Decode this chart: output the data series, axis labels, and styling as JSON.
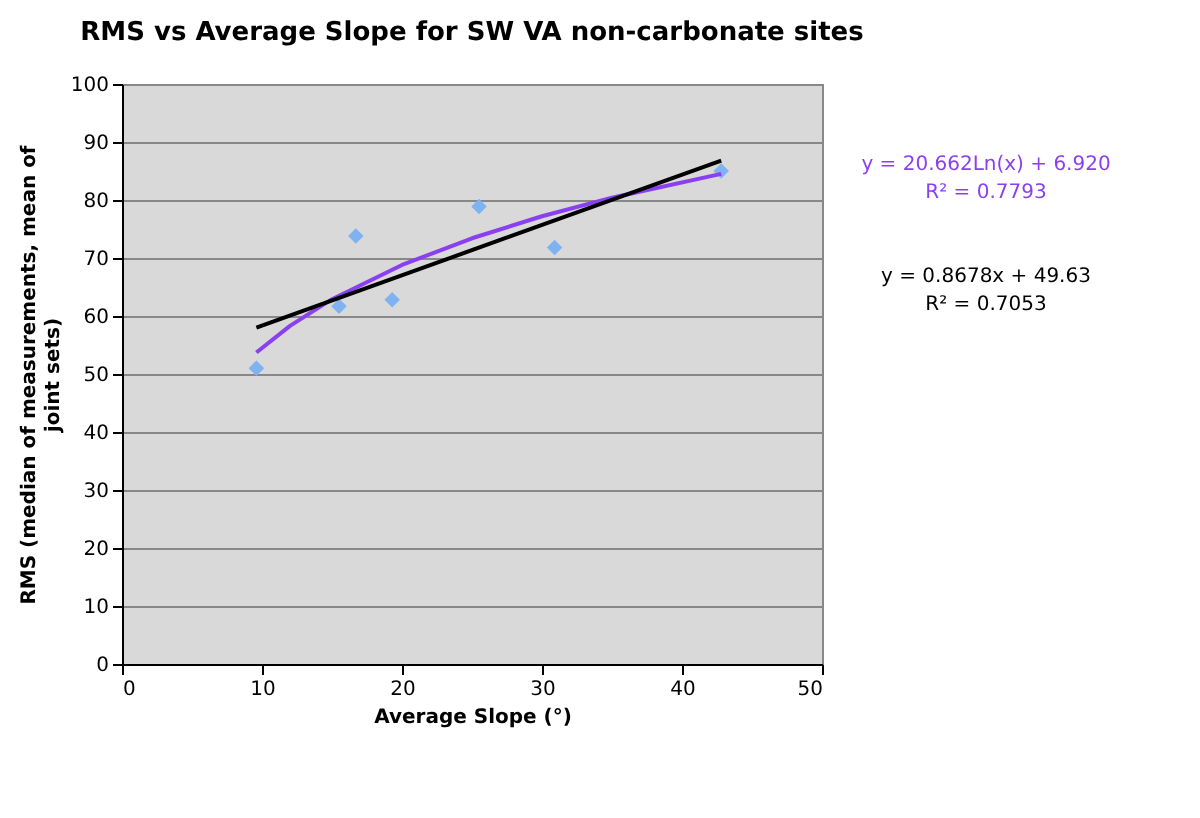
{
  "chart_data": {
    "type": "scatter",
    "title": "RMS vs Average Slope for SW VA non-carbonate sites",
    "xlabel": "Average Slope (°)",
    "ylabel": "RMS (median of measurements, mean of joint sets)",
    "series": [
      {
        "color": "#7fb2f0",
        "marker": "diamond",
        "x": [
          9.6,
          15.5,
          16.7,
          19.3,
          25.5,
          30.9,
          42.8
        ],
        "values": [
          51,
          61.7,
          73.8,
          62.8,
          78.9,
          71.8,
          85
        ]
      },
      {
        "type": "line",
        "color": "#8a3ff0",
        "marker": "none",
        "x": [
          9.6,
          12,
          15,
          20,
          25,
          30,
          35,
          42.8
        ],
        "values": [
          53.7,
          58.3,
          62.9,
          68.8,
          73.4,
          77.2,
          80.4,
          84.5
        ]
      },
      {
        "type": "line",
        "color": "#000000",
        "marker": "none",
        "x": [
          9.6,
          42.8
        ],
        "values": [
          58.0,
          86.8
        ]
      }
    ],
    "annotations": [
      "y = 20.662Ln(x) + 6.920",
      "R² = 0.7793",
      "y = 0.8678x + 49.63",
      "R² = 0.7053"
    ],
    "xlim": [
      0,
      50
    ],
    "xticks": [
      0,
      10,
      20,
      30,
      40,
      50
    ],
    "ylim": [
      0,
      100
    ],
    "yticks": [
      0,
      10,
      20,
      30,
      40,
      50,
      60,
      70,
      80,
      90,
      100
    ],
    "grid": "y"
  }
}
